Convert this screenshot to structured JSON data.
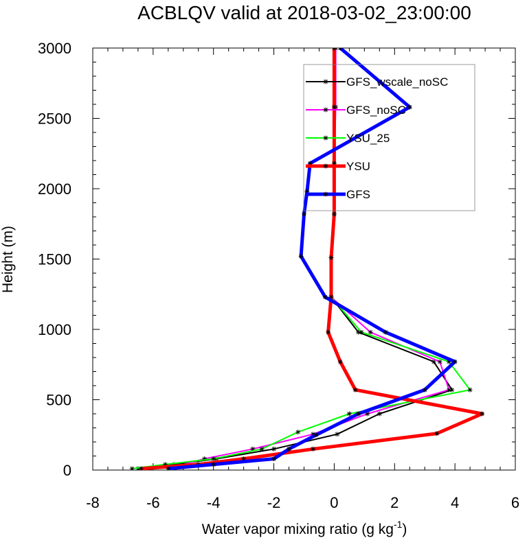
{
  "chart_data": {
    "type": "line",
    "title": "ACBLQV valid at 2018-03-02_23:00:00",
    "xlabel": "Water vapor mixing ratio (g kg",
    "xlabel_exp": "-1",
    "xlabel_tail": ")",
    "ylabel": "Height (m)",
    "xlim": [
      -8,
      6
    ],
    "ylim": [
      0,
      3000
    ],
    "x_ticks": [
      -8,
      -6,
      -4,
      -2,
      0,
      2,
      4,
      6
    ],
    "y_ticks": [
      0,
      500,
      1000,
      1500,
      2000,
      2500,
      3000
    ],
    "grid": false,
    "legend_position": "top-right",
    "series": [
      {
        "name": "GFS_wscale_noSC",
        "color": "#000000",
        "width": 2,
        "heights": [
          3000,
          2580,
          2180,
          1820,
          1510,
          1230,
          980,
          770,
          570,
          400,
          255,
          150,
          80,
          40,
          10
        ],
        "values": [
          0.0,
          0.0,
          0.0,
          0.0,
          -0.1,
          -0.1,
          0.8,
          3.3,
          3.9,
          1.5,
          0.1,
          -2.0,
          -3.9,
          -5.3,
          -6.5
        ]
      },
      {
        "name": "GFS_noSC",
        "color": "#ff00ff",
        "width": 2,
        "heights": [
          3000,
          2580,
          2180,
          1820,
          1510,
          1230,
          980,
          770,
          570,
          400,
          255,
          150,
          80,
          40,
          10
        ],
        "values": [
          0.05,
          0.05,
          0.0,
          0.0,
          -0.1,
          -0.1,
          1.2,
          3.5,
          3.8,
          1.1,
          -0.7,
          -2.7,
          -4.3,
          -5.0,
          -6.3
        ]
      },
      {
        "name": "YSU_25",
        "color": "#00ff00",
        "width": 2,
        "heights": [
          3000,
          2580,
          2180,
          1820,
          1510,
          1230,
          980,
          770,
          570,
          400,
          270,
          150,
          80,
          40,
          10
        ],
        "values": [
          0.0,
          0.0,
          0.0,
          0.0,
          -0.1,
          -0.1,
          0.9,
          3.8,
          4.5,
          0.5,
          -1.2,
          -2.4,
          -4.0,
          -5.6,
          -6.7
        ]
      },
      {
        "name": "YSU",
        "color": "#ff0000",
        "width": 5,
        "heights": [
          3000,
          2580,
          2180,
          1820,
          1510,
          1230,
          980,
          770,
          570,
          400,
          260,
          150,
          80,
          40,
          10
        ],
        "values": [
          0.0,
          0.0,
          0.0,
          0.0,
          -0.1,
          -0.1,
          -0.2,
          0.2,
          0.7,
          4.9,
          3.4,
          -0.7,
          -3.0,
          -4.5,
          -6.4
        ]
      },
      {
        "name": "GFS",
        "color": "#0000ff",
        "width": 5,
        "heights": [
          3000,
          2580,
          2180,
          1980,
          1820,
          1520,
          1230,
          980,
          770,
          570,
          400,
          250,
          150,
          80,
          40,
          10
        ],
        "values": [
          0.2,
          2.5,
          -0.8,
          -0.9,
          -1.0,
          -1.1,
          -0.3,
          1.7,
          4.0,
          3.0,
          0.8,
          -0.6,
          -1.5,
          -2.0,
          -4.0,
          -5.5
        ]
      }
    ]
  }
}
